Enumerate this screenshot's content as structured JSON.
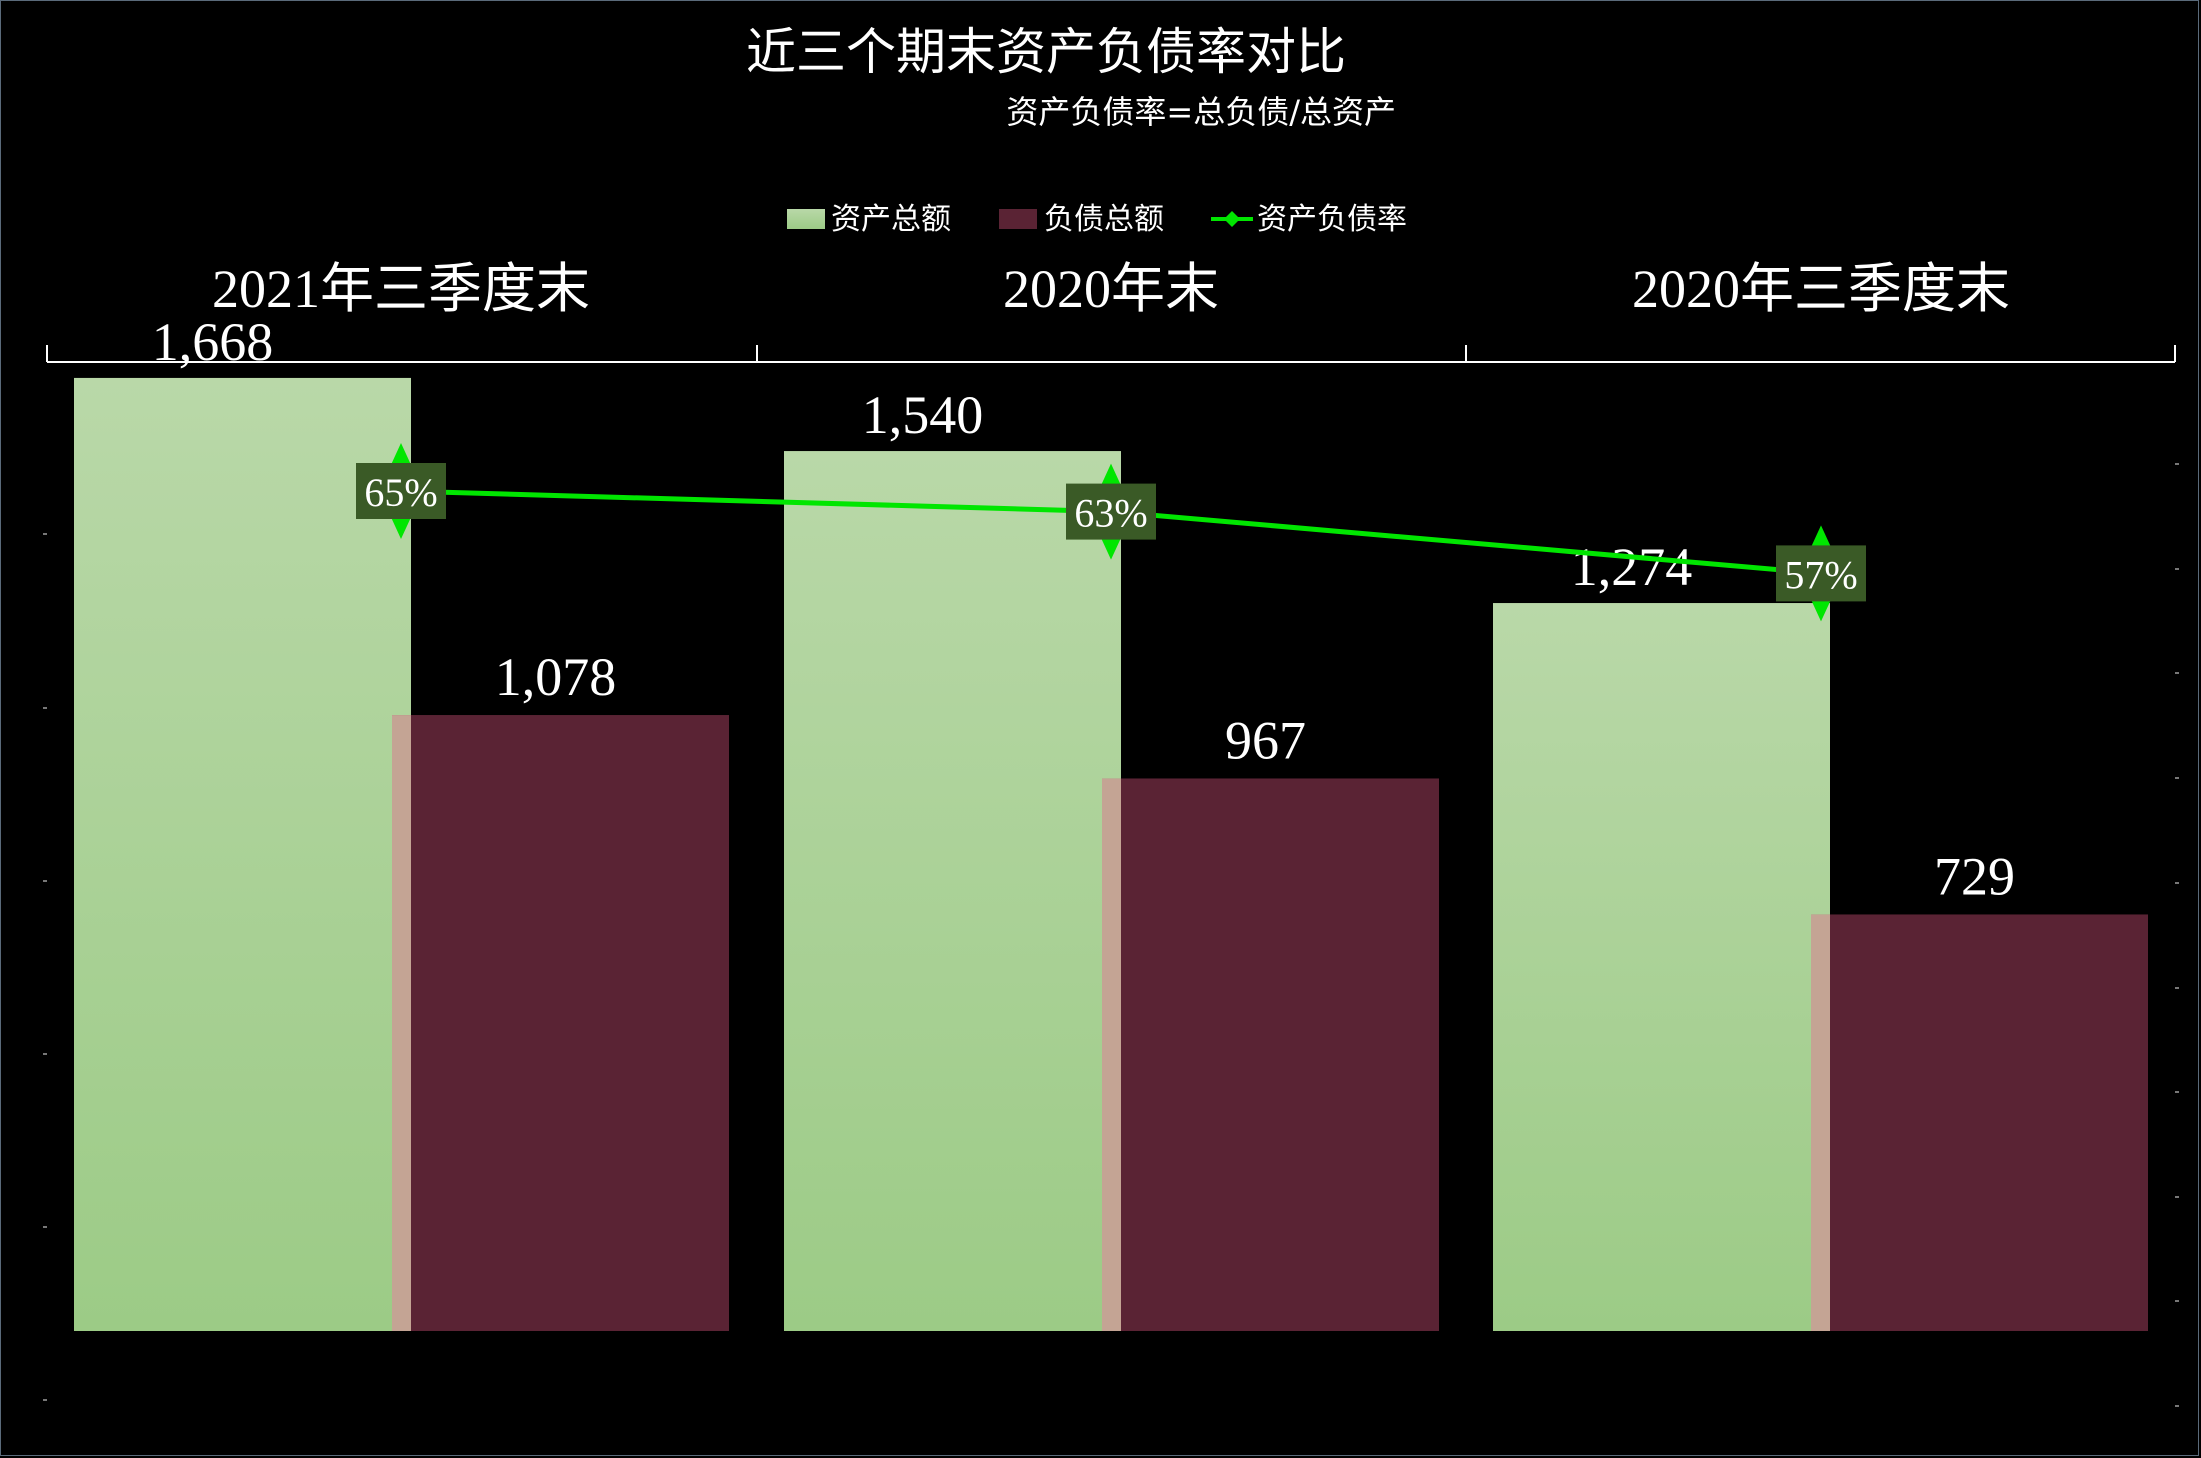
{
  "chart_data": {
    "type": "bar",
    "title": "近三个期末资产负债率对比",
    "subtitle": "资产负债率=总负债/总资产",
    "categories": [
      "2021年三季度末",
      "2020年末",
      "2020年三季度末"
    ],
    "series": [
      {
        "name": "资产总额",
        "type": "bar",
        "values": [
          1668,
          1540,
          1274
        ],
        "labels": [
          "1,668",
          "1,540",
          "1,274"
        ]
      },
      {
        "name": "负债总额",
        "type": "bar",
        "values": [
          1078,
          967,
          729
        ],
        "labels": [
          "1,078",
          "967",
          "729"
        ]
      },
      {
        "name": "资产负债率",
        "type": "line",
        "values": [
          65,
          63,
          57
        ],
        "labels": [
          "65%",
          "63%",
          "57%"
        ]
      }
    ],
    "ylim": [
      0,
      1800
    ],
    "legend": "top-center",
    "grid": false
  },
  "colors": {
    "background": "#000000",
    "asset_top": "#b9d8a8",
    "asset_bottom": "#9ccb86",
    "liability": "#5a2334",
    "overlap": "#c4a494",
    "ratio_line": "#00e600",
    "ratio_label_bg": "#3a5a26",
    "text": "#ffffff"
  }
}
